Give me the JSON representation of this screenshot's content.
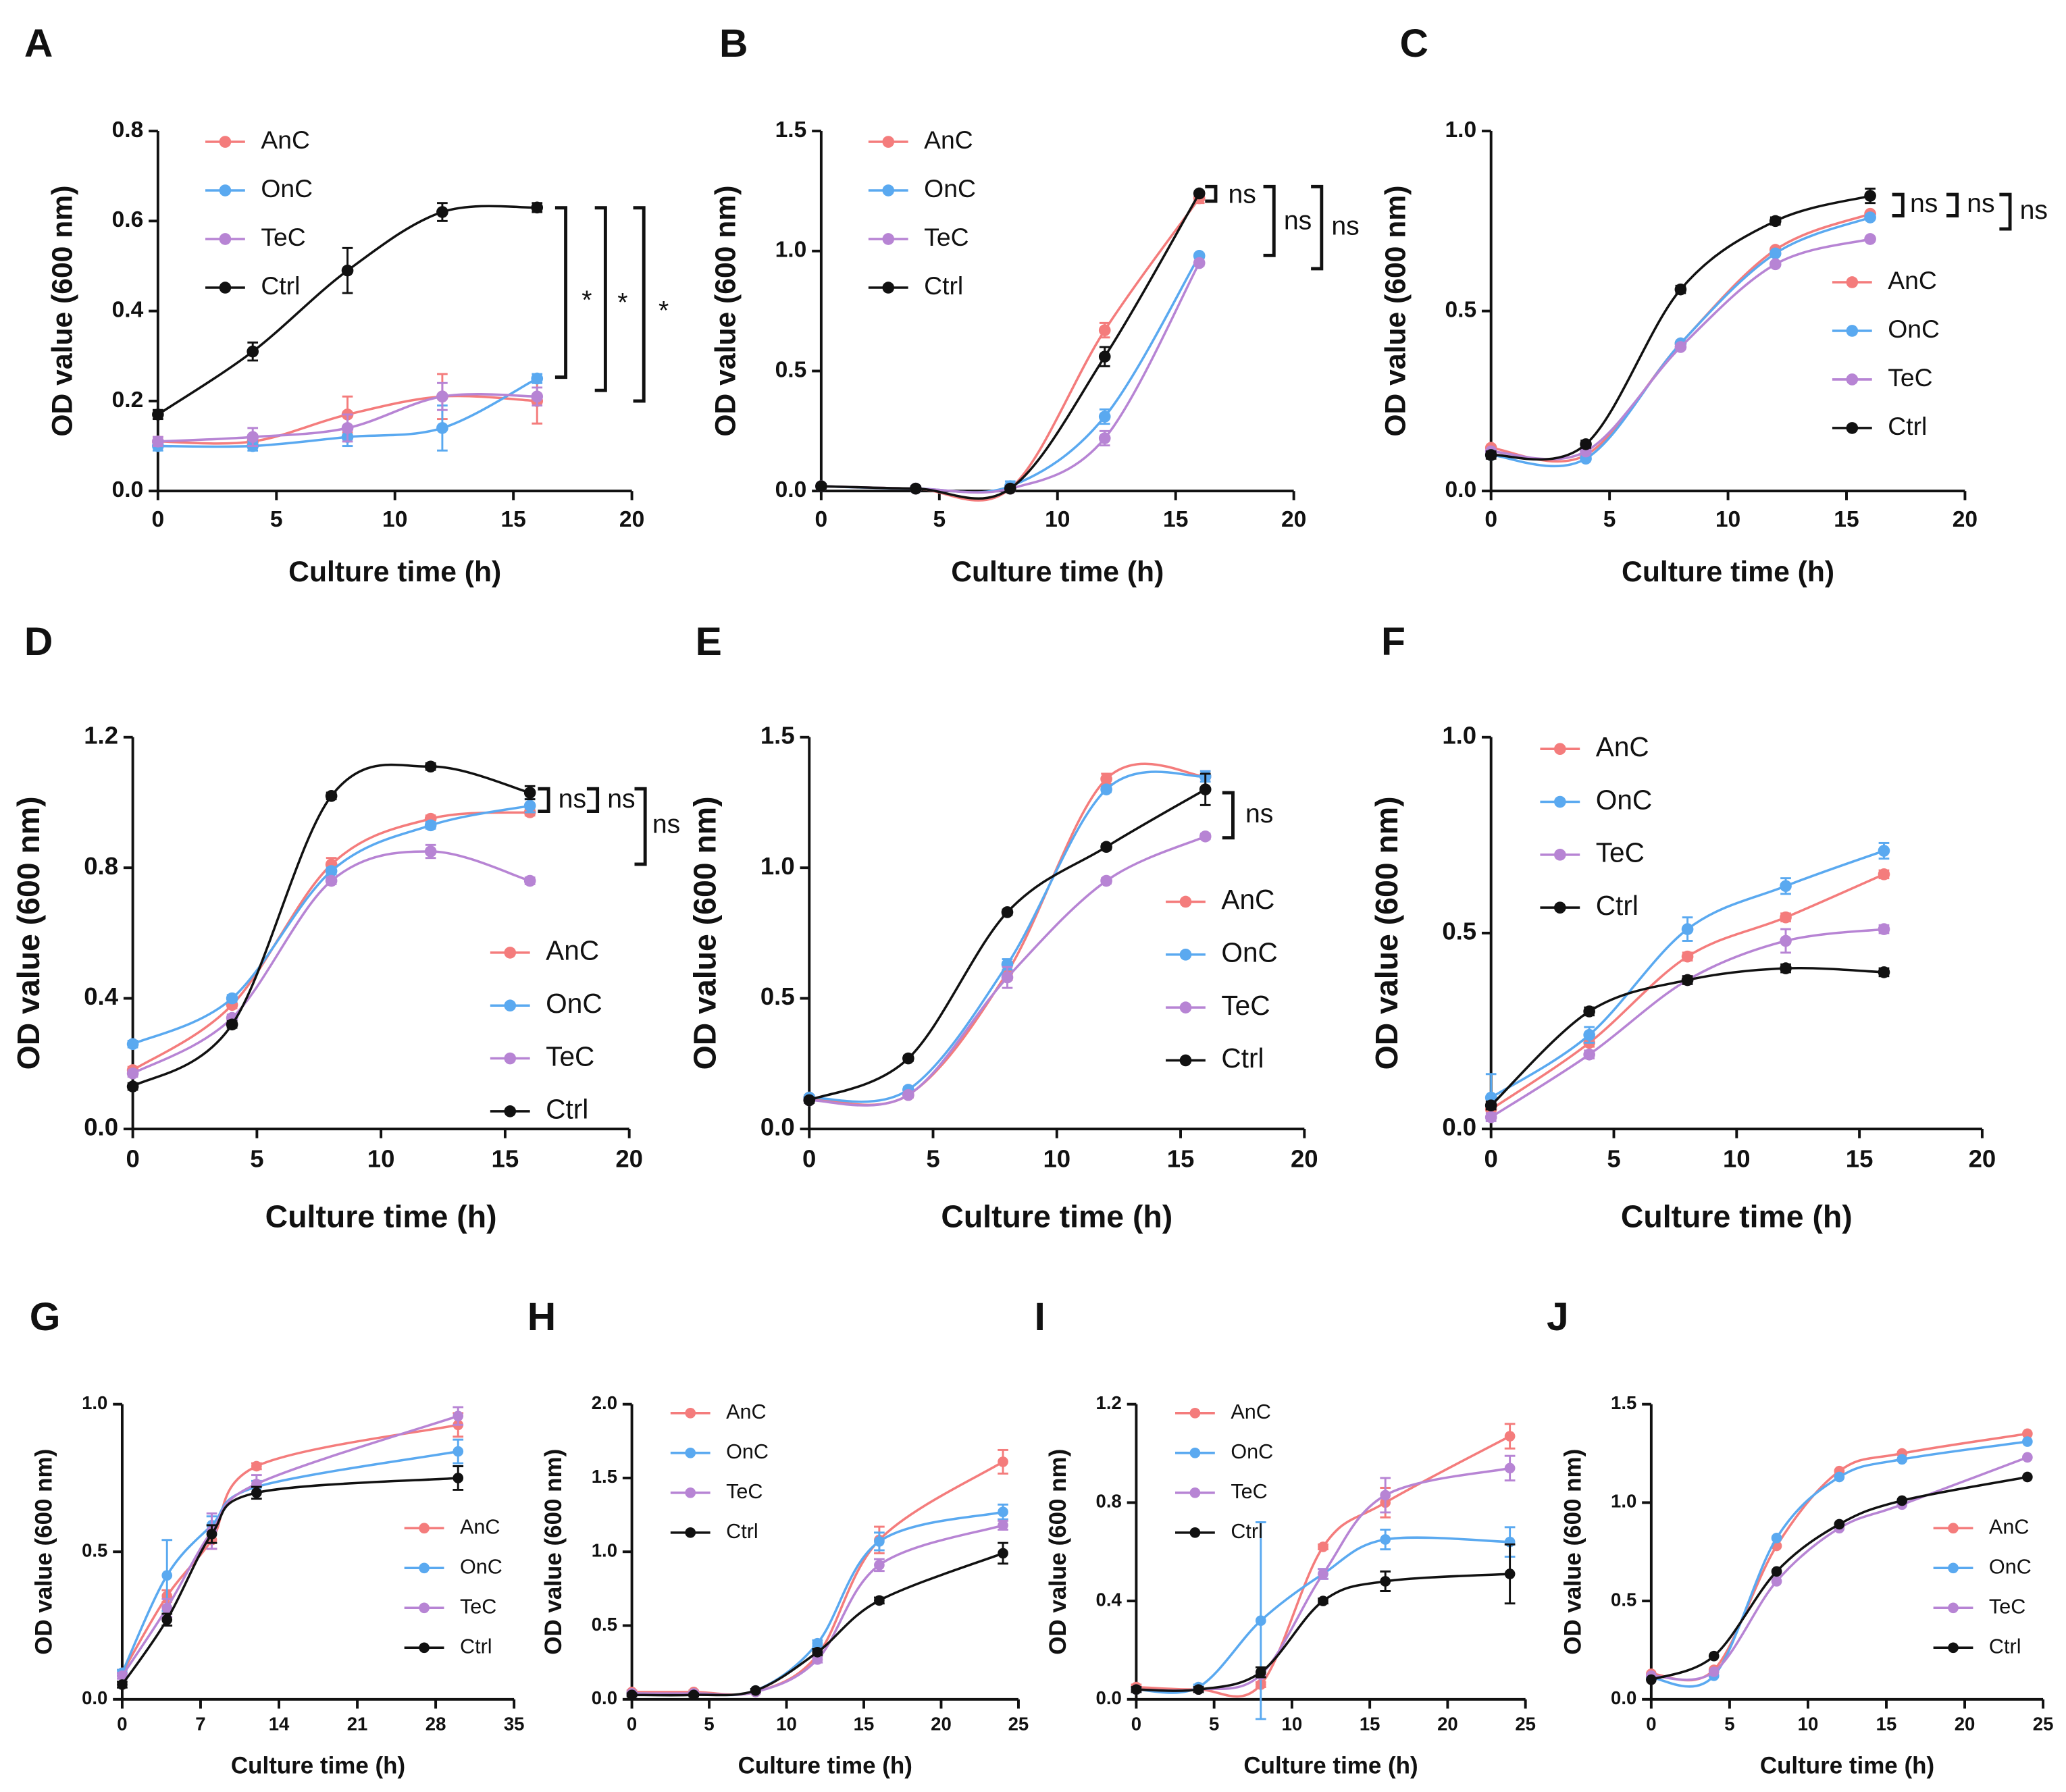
{
  "chart_data": [
    {
      "type": "line",
      "label": "A",
      "xlabel": "Culture time (h)",
      "ylabel": "OD value (600 nm)",
      "legend": "upper left",
      "x": [
        0,
        4,
        8,
        12,
        16
      ],
      "xlim": [
        0,
        20
      ],
      "xticks": [
        0,
        5,
        10,
        15,
        20
      ],
      "ylim": [
        0,
        0.8
      ],
      "yticks": [
        {
          "value": 0,
          "label": "0.0"
        },
        0.2,
        0.4,
        0.6,
        0.8
      ],
      "series": [
        {
          "name": "AnC",
          "color": "#f47c7c",
          "values": [
            0.11,
            0.11,
            0.17,
            0.21,
            0.2
          ],
          "errors": [
            0.01,
            0.01,
            0.04,
            0.05,
            0.05
          ]
        },
        {
          "name": "OnC",
          "color": "#5aa9f0",
          "values": [
            0.1,
            0.1,
            0.12,
            0.14,
            0.25
          ],
          "errors": [
            0.01,
            0.01,
            0.02,
            0.05,
            0.01
          ]
        },
        {
          "name": "TeC",
          "color": "#b784d4",
          "values": [
            0.11,
            0.12,
            0.14,
            0.21,
            0.21
          ],
          "errors": [
            0.01,
            0.02,
            0.03,
            0.03,
            0.02
          ]
        },
        {
          "name": "Ctrl",
          "color": "#111111",
          "values": [
            0.17,
            0.31,
            0.49,
            0.62,
            0.63
          ],
          "errors": [
            0.01,
            0.02,
            0.05,
            0.02,
            0.01
          ]
        }
      ],
      "annotations": [
        "*",
        "*",
        "*"
      ]
    },
    {
      "type": "line",
      "label": "B",
      "xlabel": "Culture time (h)",
      "ylabel": "OD value (600 nm)",
      "legend": "upper left",
      "x": [
        0,
        4,
        8,
        12,
        16
      ],
      "xlim": [
        0,
        20
      ],
      "xticks": [
        0,
        5,
        10,
        15,
        20
      ],
      "ylim": [
        0,
        1.5
      ],
      "yticks": [
        {
          "value": 0,
          "label": "0.0"
        },
        0.5,
        {
          "value": 1,
          "label": "1.0"
        },
        1.5
      ],
      "series": [
        {
          "name": "AnC",
          "color": "#f47c7c",
          "values": [
            0.02,
            0.01,
            0.01,
            0.67,
            1.22
          ],
          "errors": [
            0.01,
            0.01,
            0.01,
            0.03,
            0.02
          ]
        },
        {
          "name": "OnC",
          "color": "#5aa9f0",
          "values": [
            0.02,
            0.01,
            0.02,
            0.31,
            0.98
          ],
          "errors": [
            0.01,
            0.01,
            0.02,
            0.03,
            0.01
          ]
        },
        {
          "name": "TeC",
          "color": "#b784d4",
          "values": [
            0.02,
            0.01,
            0.01,
            0.22,
            0.95
          ],
          "errors": [
            0.01,
            0.01,
            0.01,
            0.03,
            0.01
          ]
        },
        {
          "name": "Ctrl",
          "color": "#111111",
          "values": [
            0.02,
            0.01,
            0.01,
            0.56,
            1.24
          ],
          "errors": [
            0.01,
            0.01,
            0.01,
            0.04,
            0.01
          ]
        }
      ],
      "annotations": [
        "ns",
        "ns",
        "ns"
      ]
    },
    {
      "type": "line",
      "label": "C",
      "xlabel": "Culture time (h)",
      "ylabel": "OD value (600 nm)",
      "legend": "center right",
      "x": [
        0,
        4,
        8,
        12,
        16
      ],
      "xlim": [
        0,
        20
      ],
      "xticks": [
        0,
        5,
        10,
        15,
        20
      ],
      "ylim": [
        0,
        1
      ],
      "yticks": [
        {
          "value": 0,
          "label": "0.0"
        },
        0.5,
        {
          "value": 1,
          "label": "1.0"
        }
      ],
      "series": [
        {
          "name": "AnC",
          "color": "#f47c7c",
          "values": [
            0.12,
            0.1,
            0.41,
            0.67,
            0.77
          ]
        },
        {
          "name": "OnC",
          "color": "#5aa9f0",
          "values": [
            0.1,
            0.09,
            0.41,
            0.66,
            0.76
          ]
        },
        {
          "name": "TeC",
          "color": "#b784d4",
          "values": [
            0.11,
            0.11,
            0.4,
            0.63,
            0.7
          ]
        },
        {
          "name": "Ctrl",
          "color": "#111111",
          "values": [
            0.1,
            0.13,
            0.56,
            0.75,
            0.82
          ],
          "errors": [
            0.01,
            0.01,
            0.01,
            0.01,
            0.02
          ]
        }
      ],
      "annotations": [
        "ns",
        "ns",
        "ns"
      ]
    },
    {
      "type": "line",
      "label": "D",
      "xlabel": "Culture time (h)",
      "ylabel": "OD value (600 nm)",
      "legend": "lower right",
      "x": [
        0,
        4,
        8,
        12,
        16
      ],
      "xlim": [
        0,
        20
      ],
      "xticks": [
        0,
        5,
        10,
        15,
        20
      ],
      "ylim": [
        0,
        1.2
      ],
      "yticks": [
        {
          "value": 0,
          "label": "0.0"
        },
        0.4,
        0.8,
        1.2
      ],
      "series": [
        {
          "name": "AnC",
          "color": "#f47c7c",
          "values": [
            0.18,
            0.38,
            0.81,
            0.95,
            0.97
          ],
          "errors": [
            0.01,
            0.01,
            0.02,
            0.01,
            0.01
          ]
        },
        {
          "name": "OnC",
          "color": "#5aa9f0",
          "values": [
            0.26,
            0.4,
            0.79,
            0.93,
            0.99
          ],
          "errors": [
            0.01,
            0.01,
            0.01,
            0.01,
            0.02
          ]
        },
        {
          "name": "TeC",
          "color": "#b784d4",
          "values": [
            0.17,
            0.34,
            0.76,
            0.85,
            0.76
          ],
          "errors": [
            0.01,
            0.01,
            0.01,
            0.02,
            0.01
          ]
        },
        {
          "name": "Ctrl",
          "color": "#111111",
          "values": [
            0.13,
            0.32,
            1.02,
            1.11,
            1.03
          ],
          "errors": [
            0.01,
            0.01,
            0.01,
            0.01,
            0.02
          ]
        }
      ],
      "annotations": [
        "ns",
        "ns",
        "ns"
      ]
    },
    {
      "type": "line",
      "label": "E",
      "xlabel": "Culture time (h)",
      "ylabel": "OD value (600 nm)",
      "legend": "center right",
      "x": [
        0,
        4,
        8,
        12,
        16
      ],
      "xlim": [
        0,
        20
      ],
      "xticks": [
        0,
        5,
        10,
        15,
        20
      ],
      "ylim": [
        0,
        1.5
      ],
      "yticks": [
        {
          "value": 0,
          "label": "0.0"
        },
        0.5,
        {
          "value": 1,
          "label": "1.0"
        },
        1.5
      ],
      "series": [
        {
          "name": "AnC",
          "color": "#f47c7c",
          "values": [
            0.12,
            0.13,
            0.6,
            1.34,
            1.35
          ],
          "errors": [
            0.01,
            0.01,
            0.03,
            0.02,
            0.02
          ]
        },
        {
          "name": "OnC",
          "color": "#5aa9f0",
          "values": [
            0.12,
            0.15,
            0.63,
            1.3,
            1.35
          ],
          "errors": [
            0.01,
            0.01,
            0.02,
            0.01,
            0.02
          ]
        },
        {
          "name": "TeC",
          "color": "#b784d4",
          "values": [
            0.11,
            0.13,
            0.58,
            0.95,
            1.12
          ],
          "errors": [
            0.01,
            0.01,
            0.04,
            0.01,
            0.01
          ]
        },
        {
          "name": "Ctrl",
          "color": "#111111",
          "values": [
            0.11,
            0.27,
            0.83,
            1.08,
            1.3
          ],
          "errors": [
            0.01,
            0.01,
            0.01,
            0.01,
            0.06
          ]
        }
      ],
      "annotations": [
        "ns"
      ]
    },
    {
      "type": "line",
      "label": "F",
      "xlabel": "Culture time (h)",
      "ylabel": "OD value (600 nm)",
      "legend": "upper left",
      "x": [
        0,
        4,
        8,
        12,
        16
      ],
      "xlim": [
        0,
        20
      ],
      "xticks": [
        0,
        5,
        10,
        15,
        20
      ],
      "ylim": [
        0,
        1
      ],
      "yticks": [
        {
          "value": 0,
          "label": "0.0"
        },
        0.5,
        {
          "value": 1,
          "label": "1.0"
        }
      ],
      "series": [
        {
          "name": "AnC",
          "color": "#f47c7c",
          "values": [
            0.05,
            0.22,
            0.44,
            0.54,
            0.65
          ],
          "errors": [
            0.02,
            0.01,
            0.01,
            0.01,
            0.01
          ]
        },
        {
          "name": "OnC",
          "color": "#5aa9f0",
          "values": [
            0.08,
            0.24,
            0.51,
            0.62,
            0.71
          ],
          "errors": [
            0.06,
            0.02,
            0.03,
            0.02,
            0.02
          ]
        },
        {
          "name": "TeC",
          "color": "#b784d4",
          "values": [
            0.03,
            0.19,
            0.38,
            0.48,
            0.51
          ],
          "errors": [
            0.01,
            0.01,
            0.01,
            0.03,
            0.01
          ]
        },
        {
          "name": "Ctrl",
          "color": "#111111",
          "values": [
            0.06,
            0.3,
            0.38,
            0.41,
            0.4
          ],
          "errors": [
            0.01,
            0.01,
            0.01,
            0.01,
            0.01
          ]
        }
      ]
    },
    {
      "type": "line",
      "label": "G",
      "xlabel": "Culture time (h)",
      "ylabel": "OD value (600 nm)",
      "legend": "center right",
      "x": [
        0,
        4,
        8,
        12,
        30
      ],
      "xlim": [
        0,
        35
      ],
      "xticks": [
        0,
        7,
        14,
        21,
        28,
        35
      ],
      "ylim": [
        0,
        1
      ],
      "yticks": [
        {
          "value": 0,
          "label": "0.0"
        },
        0.5,
        {
          "value": 1,
          "label": "1.0"
        }
      ],
      "series": [
        {
          "name": "AnC",
          "color": "#f47c7c",
          "values": [
            0.09,
            0.35,
            0.54,
            0.79,
            0.93
          ],
          "errors": [
            0.01,
            0.02,
            0.03,
            0.01,
            0.04
          ]
        },
        {
          "name": "OnC",
          "color": "#5aa9f0",
          "values": [
            0.09,
            0.42,
            0.59,
            0.72,
            0.84
          ],
          "errors": [
            0.01,
            0.12,
            0.03,
            0.02,
            0.04
          ]
        },
        {
          "name": "TeC",
          "color": "#b784d4",
          "values": [
            0.08,
            0.31,
            0.57,
            0.73,
            0.96
          ],
          "errors": [
            0.01,
            0.03,
            0.06,
            0.03,
            0.03
          ]
        },
        {
          "name": "Ctrl",
          "color": "#111111",
          "values": [
            0.05,
            0.27,
            0.56,
            0.7,
            0.75
          ],
          "errors": [
            0.01,
            0.02,
            0.03,
            0.02,
            0.04
          ]
        }
      ]
    },
    {
      "type": "line",
      "label": "H",
      "xlabel": "Culture time (h)",
      "ylabel": "OD value (600 nm)",
      "legend": "upper left",
      "x": [
        0,
        4,
        8,
        12,
        16,
        24
      ],
      "xlim": [
        0,
        25
      ],
      "xticks": [
        0,
        5,
        10,
        15,
        20,
        25
      ],
      "ylim": [
        0,
        2
      ],
      "yticks": [
        {
          "value": 0,
          "label": "0.0"
        },
        0.5,
        {
          "value": 1,
          "label": "1.0"
        },
        1.5,
        {
          "value": 2,
          "label": "2.0"
        }
      ],
      "series": [
        {
          "name": "AnC",
          "color": "#f47c7c",
          "values": [
            0.05,
            0.05,
            0.05,
            0.3,
            1.08,
            1.61
          ],
          "errors": [
            0.01,
            0.01,
            0.01,
            0.03,
            0.09,
            0.08
          ]
        },
        {
          "name": "OnC",
          "color": "#5aa9f0",
          "values": [
            0.04,
            0.04,
            0.06,
            0.38,
            1.07,
            1.27
          ],
          "errors": [
            0.01,
            0.01,
            0.01,
            0.02,
            0.06,
            0.05
          ]
        },
        {
          "name": "TeC",
          "color": "#b784d4",
          "values": [
            0.04,
            0.04,
            0.05,
            0.27,
            0.91,
            1.18
          ],
          "errors": [
            0.01,
            0.01,
            0.01,
            0.02,
            0.04,
            0.03
          ]
        },
        {
          "name": "Ctrl",
          "color": "#111111",
          "values": [
            0.03,
            0.03,
            0.06,
            0.32,
            0.67,
            0.99
          ],
          "errors": [
            0.01,
            0.01,
            0.01,
            0.02,
            0.02,
            0.07
          ]
        }
      ]
    },
    {
      "type": "line",
      "label": "I",
      "xlabel": "Culture time (h)",
      "ylabel": "OD value (600 nm)",
      "legend": "upper left",
      "x": [
        0,
        4,
        8,
        12,
        16,
        24
      ],
      "xlim": [
        0,
        25
      ],
      "xticks": [
        0,
        5,
        10,
        15,
        20,
        25
      ],
      "ylim": [
        0,
        1.2
      ],
      "yticks": [
        {
          "value": 0,
          "label": "0.0"
        },
        0.4,
        0.8,
        1.2
      ],
      "series": [
        {
          "name": "AnC",
          "color": "#f47c7c",
          "values": [
            0.05,
            0.04,
            0.06,
            0.62,
            0.8,
            1.07
          ],
          "errors": [
            0.01,
            0.01,
            0.01,
            0.01,
            0.06,
            0.05
          ]
        },
        {
          "name": "OnC",
          "color": "#5aa9f0",
          "values": [
            0.04,
            0.05,
            0.32,
            0.51,
            0.65,
            0.64
          ],
          "errors": [
            0.01,
            0.01,
            0.4,
            0.02,
            0.04,
            0.06
          ]
        },
        {
          "name": "TeC",
          "color": "#b784d4",
          "values": [
            0.04,
            0.04,
            0.1,
            0.51,
            0.83,
            0.94
          ],
          "errors": [
            0.01,
            0.01,
            0.01,
            0.02,
            0.07,
            0.05
          ]
        },
        {
          "name": "Ctrl",
          "color": "#111111",
          "values": [
            0.04,
            0.04,
            0.11,
            0.4,
            0.48,
            0.51
          ],
          "errors": [
            0.01,
            0.01,
            0.02,
            0.01,
            0.04,
            0.12
          ]
        }
      ]
    },
    {
      "type": "line",
      "label": "J",
      "xlabel": "Culture time (h)",
      "ylabel": "OD value (600 nm)",
      "legend": "center right",
      "x": [
        0,
        4,
        8,
        12,
        16,
        24
      ],
      "xlim": [
        0,
        25
      ],
      "xticks": [
        0,
        5,
        10,
        15,
        20,
        25
      ],
      "ylim": [
        0,
        1.5
      ],
      "yticks": [
        {
          "value": 0,
          "label": "0.0"
        },
        0.5,
        {
          "value": 1,
          "label": "1.0"
        },
        1.5
      ],
      "series": [
        {
          "name": "AnC",
          "color": "#f47c7c",
          "values": [
            0.13,
            0.15,
            0.78,
            1.16,
            1.25,
            1.35
          ]
        },
        {
          "name": "OnC",
          "color": "#5aa9f0",
          "values": [
            0.11,
            0.12,
            0.82,
            1.13,
            1.22,
            1.31
          ]
        },
        {
          "name": "TeC",
          "color": "#b784d4",
          "values": [
            0.12,
            0.14,
            0.6,
            0.87,
            0.99,
            1.23
          ]
        },
        {
          "name": "Ctrl",
          "color": "#111111",
          "values": [
            0.1,
            0.22,
            0.65,
            0.89,
            1.01,
            1.13
          ]
        }
      ]
    }
  ]
}
